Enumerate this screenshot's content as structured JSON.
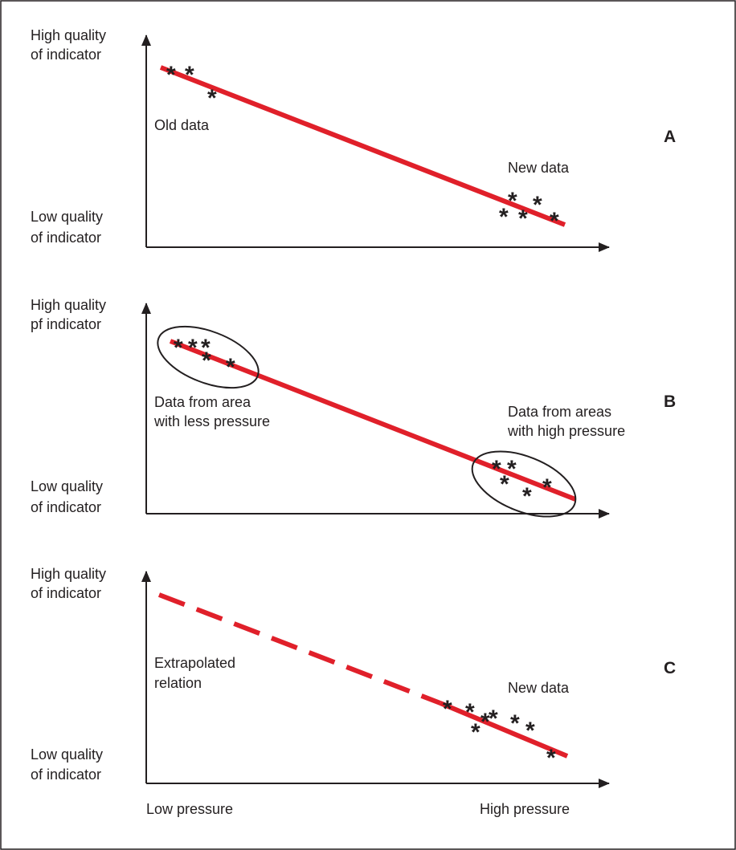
{
  "colors": {
    "axis": "#231f20",
    "trend_line": "#e0202a",
    "text": "#231f20",
    "border": "#231f20"
  },
  "panels": [
    {
      "letter": "A",
      "y_high": [
        "High quality",
        "of indicator"
      ],
      "y_low": [
        "Low quality",
        "of indicator"
      ],
      "annotations": [
        "Old data",
        "New data"
      ],
      "line_style": "solid"
    },
    {
      "letter": "B",
      "y_high": [
        "High quality",
        "pf indicator"
      ],
      "y_low": [
        "Low quality",
        "of indicator"
      ],
      "annotations": [
        "Data from area",
        "with less pressure",
        "Data from areas",
        "with high pressure"
      ],
      "line_style": "solid"
    },
    {
      "letter": "C",
      "y_high": [
        "High quality",
        "of indicator"
      ],
      "y_low": [
        "Low quality",
        "of indicator"
      ],
      "annotations": [
        "Extrapolated",
        "relation",
        "New data"
      ],
      "line_style": "dashed",
      "x_low": "Low pressure",
      "x_high": "High pressure"
    }
  ]
}
